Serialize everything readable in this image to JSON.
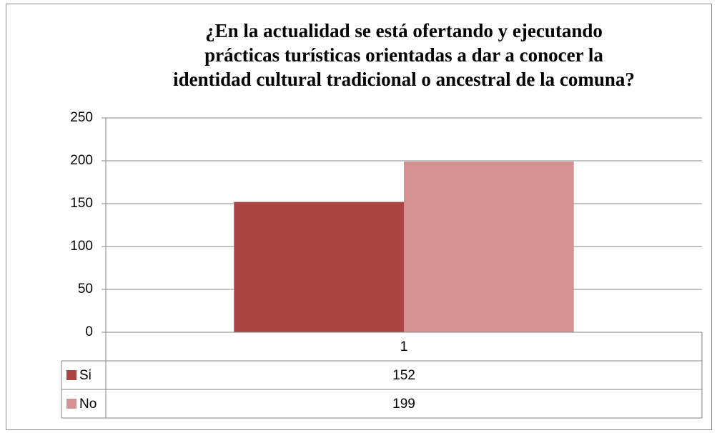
{
  "chart_data": {
    "type": "bar",
    "title": "¿En la actualidad se está ofertando y ejecutando\nprácticas turísticas orientadas a dar a conocer la\nidentidad cultural tradicional o ancestral de la comuna?",
    "categories": [
      "1"
    ],
    "series": [
      {
        "name": "Si",
        "color": "#a94543",
        "values": [
          152
        ]
      },
      {
        "name": "No",
        "color": "#d39191",
        "values": [
          199
        ]
      }
    ],
    "ylim": [
      0,
      250
    ],
    "yticks": [
      0,
      50,
      100,
      150,
      200,
      250
    ],
    "grid": true,
    "data_table": true
  }
}
